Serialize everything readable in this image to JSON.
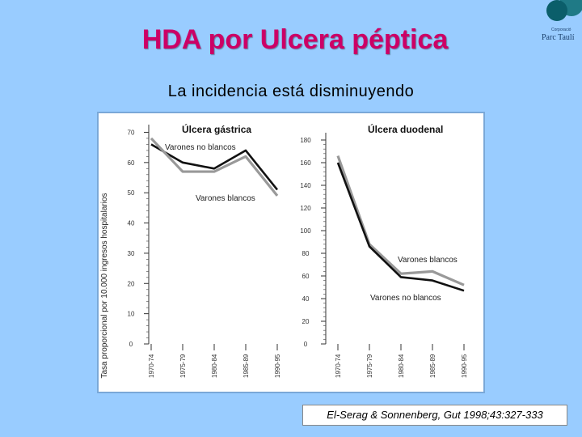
{
  "slide": {
    "title": "HDA por Ulcera péptica",
    "subtitle": "La incidencia está disminuyendo",
    "logo_small": "Corporació",
    "logo_text": "Parc Taulí",
    "citation": "El-Serag & Sonnenberg, Gut 1998;43:327-333"
  },
  "colors": {
    "background": "#99ccff",
    "title": "#cc0066",
    "series_dark": "#111111",
    "series_light": "#999999",
    "panel_border": "#7aa8d8"
  },
  "chart_data": [
    {
      "type": "line",
      "title": "Úlcera gástrica",
      "ylabel": "Tasa proporcional por 10.000 ingresos hospitalarios",
      "categories": [
        "1970-74",
        "1975-79",
        "1980-84",
        "1985-89",
        "1990-95"
      ],
      "yticks": [
        0,
        10,
        20,
        30,
        40,
        50,
        60,
        70
      ],
      "ylim": [
        0,
        72
      ],
      "series": [
        {
          "name": "Varones no blancos",
          "values": [
            66,
            60,
            58,
            64,
            51
          ],
          "style": "dark"
        },
        {
          "name": "Varones blancos",
          "values": [
            68,
            57,
            57,
            62,
            49
          ],
          "style": "light"
        }
      ]
    },
    {
      "type": "line",
      "title": "Úlcera duodenal",
      "ylabel": "",
      "categories": [
        "1970-74",
        "1975-79",
        "1980-84",
        "1985-89",
        "1990-95"
      ],
      "yticks": [
        0,
        20,
        40,
        60,
        80,
        100,
        120,
        140,
        160,
        180
      ],
      "ylim": [
        0,
        185
      ],
      "series": [
        {
          "name": "Varones blancos",
          "values": [
            166,
            88,
            62,
            64,
            52
          ],
          "style": "light"
        },
        {
          "name": "Varones no blancos",
          "values": [
            160,
            86,
            59,
            56,
            47
          ],
          "style": "dark"
        }
      ]
    }
  ]
}
